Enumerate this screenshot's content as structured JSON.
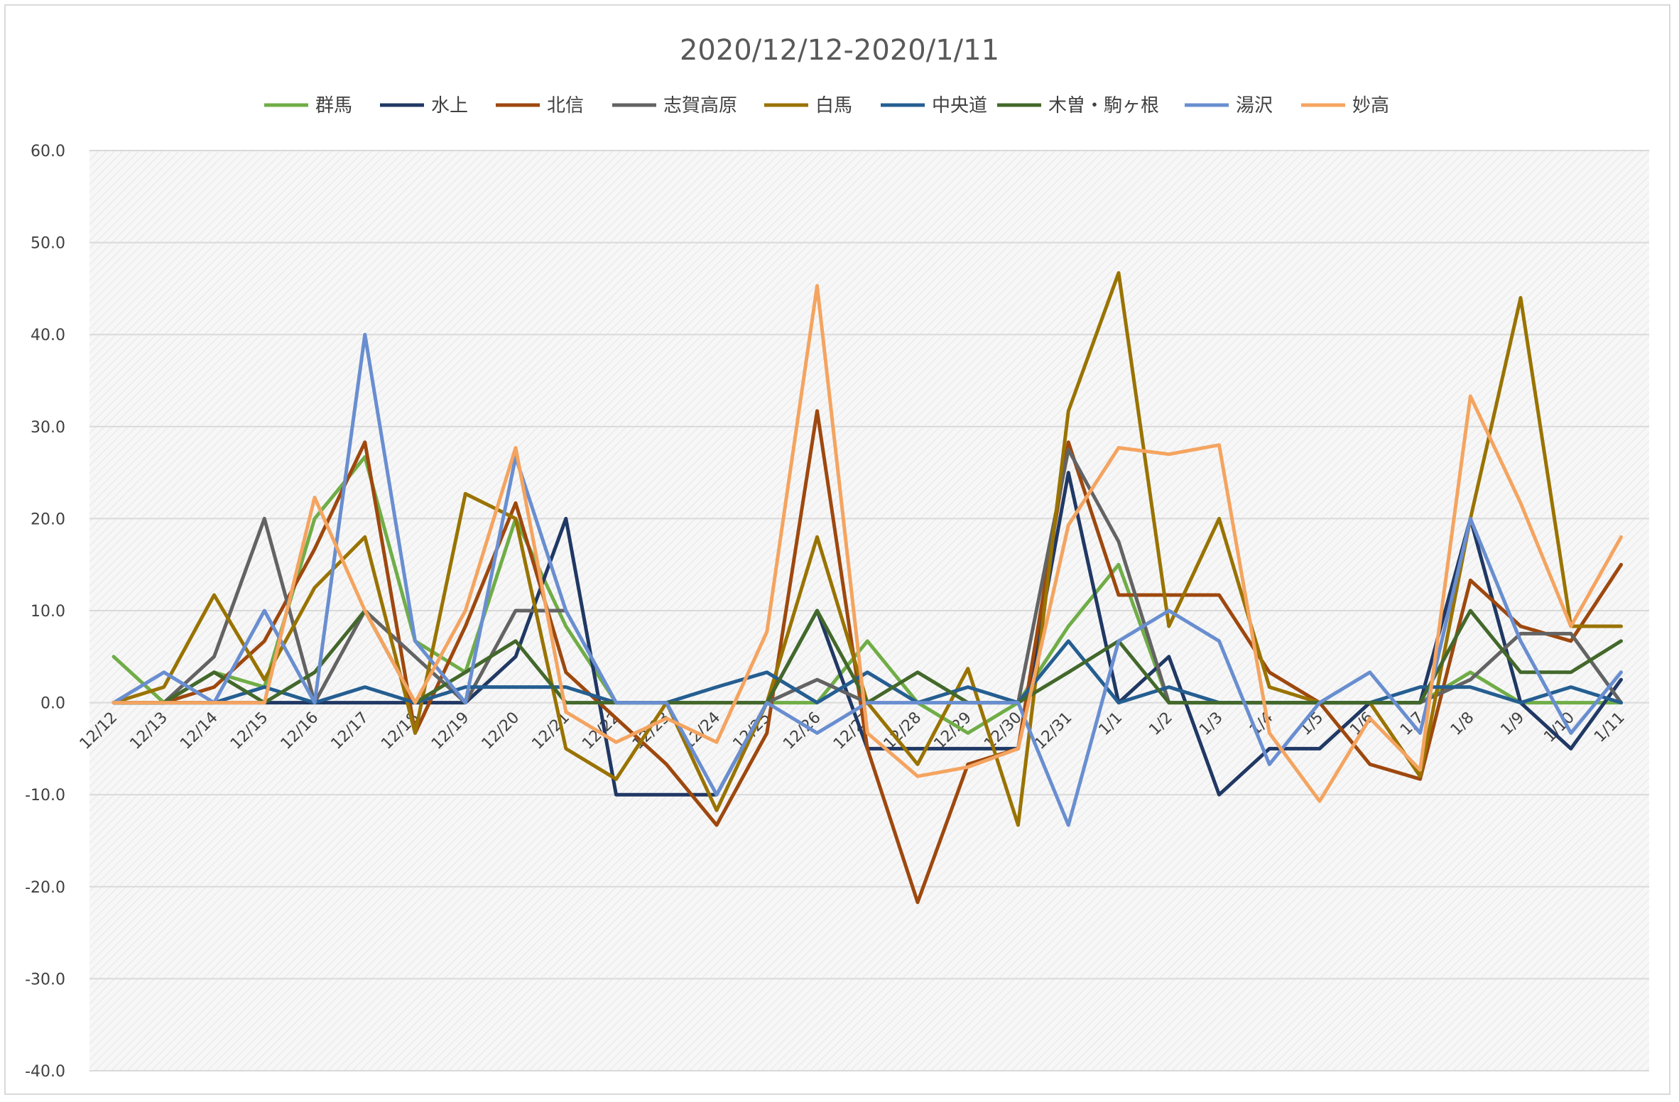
{
  "chart_data": {
    "type": "line",
    "title": "2020/12/12-2020/1/11",
    "xlabel": "",
    "ylabel": "",
    "ylim": [
      -40,
      60
    ],
    "yticks": [
      "60.0",
      "50.0",
      "40.0",
      "30.0",
      "20.0",
      "10.0",
      "0.0",
      "-10.0",
      "-20.0",
      "-30.0",
      "-40.0"
    ],
    "ytick_values": [
      60,
      50,
      40,
      30,
      20,
      10,
      0,
      -10,
      -20,
      -30,
      -40
    ],
    "grid": true,
    "legend_position": "top",
    "categories": [
      "12/12",
      "12/13",
      "12/14",
      "12/15",
      "12/16",
      "12/17",
      "12/18",
      "12/19",
      "12/20",
      "12/21",
      "12/22",
      "12/23",
      "12/24",
      "12/25",
      "12/26",
      "12/27",
      "12/28",
      "12/29",
      "12/30",
      "12/31",
      "1/1",
      "1/2",
      "1/3",
      "1/4",
      "1/5",
      "1/6",
      "1/7",
      "1/8",
      "1/9",
      "1/10",
      "1/11"
    ],
    "series": [
      {
        "name": "群馬",
        "color": "#70ad47",
        "values": [
          5,
          0,
          3.3,
          1.7,
          20,
          26.7,
          6.7,
          3.3,
          20,
          8.3,
          0,
          0,
          0,
          0,
          0,
          6.7,
          0,
          -3.3,
          0,
          8.3,
          15,
          0,
          0,
          0,
          0,
          0,
          0,
          3.3,
          0,
          0,
          0
        ]
      },
      {
        "name": "水上",
        "color": "#203864",
        "values": [
          0,
          0,
          0,
          0,
          0,
          0,
          0,
          0,
          5,
          20,
          -10,
          -10,
          -10,
          0,
          10,
          -5,
          -5,
          -5,
          -5,
          25,
          0,
          5,
          -10,
          -5,
          -5,
          0,
          0,
          20,
          0,
          -5,
          2.5
        ]
      },
      {
        "name": "北信",
        "color": "#9e480e",
        "values": [
          0,
          0,
          1.7,
          6.7,
          16.7,
          28.3,
          -3.3,
          8.3,
          21.7,
          3.3,
          -1.7,
          -6.7,
          -13.3,
          -3.3,
          31.7,
          -5,
          -21.7,
          -6.7,
          -5,
          28.3,
          11.7,
          11.7,
          11.7,
          3.3,
          0,
          -6.7,
          -8.3,
          13.3,
          8.3,
          6.7,
          15
        ]
      },
      {
        "name": "志賀高原",
        "color": "#636363",
        "values": [
          0,
          0,
          5,
          20,
          0,
          10,
          5,
          0,
          10,
          10,
          null,
          null,
          null,
          0,
          2.5,
          0,
          null,
          null,
          0,
          27.5,
          17.5,
          0,
          null,
          null,
          null,
          null,
          0,
          2.5,
          7.5,
          7.5,
          0
        ]
      },
      {
        "name": "白馬",
        "color": "#997300",
        "values": [
          0,
          1.7,
          11.7,
          2.5,
          12.5,
          18,
          -3.3,
          22.7,
          20,
          -5,
          -8.3,
          0,
          -11.7,
          0,
          18,
          0,
          -6.7,
          3.7,
          -13.3,
          31.7,
          46.7,
          8.3,
          20,
          1.7,
          0,
          0,
          -8,
          20,
          44,
          8.3,
          8.3
        ]
      },
      {
        "name": "中央道",
        "color": "#255e91",
        "values": [
          0,
          0,
          0,
          1.7,
          0,
          1.7,
          0,
          1.7,
          1.7,
          1.7,
          0,
          0,
          1.7,
          3.3,
          0,
          3.3,
          0,
          1.7,
          0,
          6.7,
          0,
          1.7,
          0,
          0,
          0,
          0,
          1.7,
          1.7,
          0,
          1.7,
          0
        ]
      },
      {
        "name": "木曽・駒ヶ根",
        "color": "#43682b",
        "values": [
          0,
          0,
          3.3,
          0,
          3.3,
          10,
          0,
          3.3,
          6.7,
          0,
          0,
          0,
          0,
          0,
          10,
          0,
          3.3,
          0,
          0,
          3.3,
          6.7,
          0,
          0,
          0,
          0,
          0,
          0,
          10,
          3.3,
          3.3,
          6.7
        ]
      },
      {
        "name": "湯沢",
        "color": "#698ed0",
        "values": [
          0,
          3.3,
          0,
          10,
          0,
          40,
          6.7,
          0,
          26.7,
          10,
          0,
          0,
          -10,
          0,
          -3.3,
          0,
          0,
          0,
          0,
          -13.3,
          6.7,
          10,
          6.7,
          -6.7,
          0,
          3.3,
          -3.3,
          20,
          6.7,
          -3.3,
          3.3
        ]
      },
      {
        "name": "妙高",
        "color": "#f4a460",
        "values": [
          0,
          0,
          0,
          0,
          22.3,
          10,
          0,
          10,
          27.7,
          -1,
          -4.3,
          -1.7,
          -4.3,
          7.7,
          45.3,
          -3.3,
          -8,
          -7,
          -5,
          19.3,
          27.7,
          27,
          28,
          -3.3,
          -10.7,
          -1.7,
          -7.3,
          33.3,
          21.7,
          8.3,
          18
        ]
      }
    ]
  }
}
